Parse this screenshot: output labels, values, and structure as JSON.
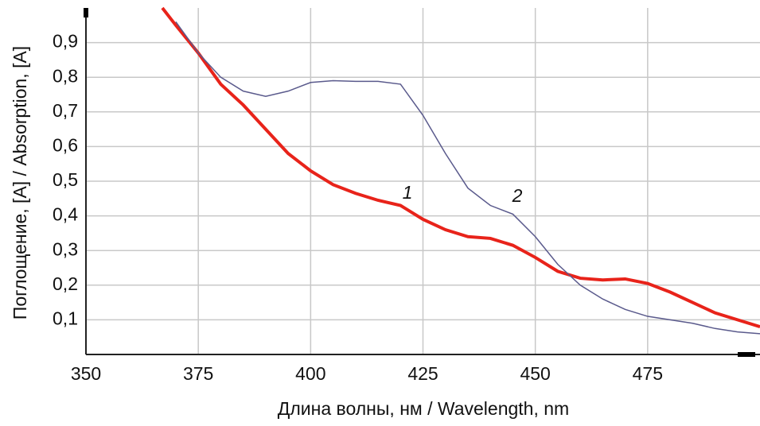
{
  "chart_data": {
    "type": "line",
    "x_label": "Длина волны, нм / Wavelength, nm",
    "y_label": "Поглощение, [A] / Absorption, [A]",
    "x": [
      367,
      370,
      375,
      380,
      385,
      390,
      395,
      400,
      405,
      410,
      415,
      420,
      425,
      430,
      435,
      440,
      445,
      450,
      455,
      460,
      465,
      470,
      475,
      480,
      485,
      490,
      495,
      500
    ],
    "series": [
      {
        "name": "1",
        "color": "#e8231a",
        "values": [
          1.0,
          0.95,
          0.87,
          0.78,
          0.72,
          0.65,
          0.58,
          0.53,
          0.49,
          0.465,
          0.445,
          0.43,
          0.39,
          0.36,
          0.34,
          0.335,
          0.315,
          0.28,
          0.24,
          0.22,
          0.215,
          0.218,
          0.205,
          0.18,
          0.15,
          0.12,
          0.1,
          0.08
        ]
      },
      {
        "name": "2",
        "color": "#5a5a8c",
        "values": [
          null,
          0.96,
          0.87,
          0.8,
          0.76,
          0.745,
          0.76,
          0.785,
          0.79,
          0.788,
          0.788,
          0.78,
          0.69,
          0.58,
          0.48,
          0.43,
          0.405,
          0.34,
          0.26,
          0.2,
          0.16,
          0.13,
          0.11,
          0.1,
          0.09,
          0.075,
          0.065,
          0.06
        ]
      }
    ],
    "xlim": [
      350,
      500
    ],
    "ylim": [
      0,
      1
    ],
    "xticks": [
      350,
      375,
      400,
      425,
      450,
      475
    ],
    "yticks": [
      {
        "value": 0.1,
        "label": "0,1"
      },
      {
        "value": 0.2,
        "label": "0,2"
      },
      {
        "value": 0.3,
        "label": "0,3"
      },
      {
        "value": 0.4,
        "label": "0,4"
      },
      {
        "value": 0.5,
        "label": "0,5"
      },
      {
        "value": 0.6,
        "label": "0,6"
      },
      {
        "value": 0.7,
        "label": "0,7"
      },
      {
        "value": 0.8,
        "label": "0,8"
      },
      {
        "value": 0.9,
        "label": "0,9"
      }
    ],
    "grid": true
  }
}
